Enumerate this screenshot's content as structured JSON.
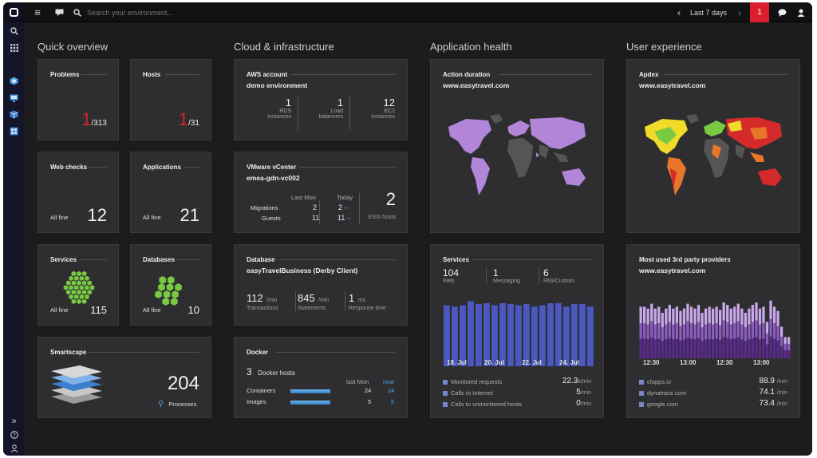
{
  "topbar": {
    "search_placeholder": "Search your environment...",
    "time_range": "Last 7 days",
    "alert_count": "1"
  },
  "sections": {
    "quick": "Quick overview",
    "cloud": "Cloud & infrastructure",
    "apphealth": "Application health",
    "ux": "User experience"
  },
  "problems": {
    "title": "Problems",
    "count": "1",
    "total": "/313"
  },
  "hosts": {
    "title": "Hosts",
    "count": "1",
    "total": "/31"
  },
  "webchecks": {
    "title": "Web checks",
    "status": "All fine",
    "value": "12"
  },
  "applications": {
    "title": "Applications",
    "status": "All fine",
    "value": "21"
  },
  "services": {
    "title": "Services",
    "status": "All fine",
    "value": "115"
  },
  "databases": {
    "title": "Databases",
    "status": "All fine",
    "value": "10"
  },
  "smartscape": {
    "title": "Smartscape",
    "value": "204",
    "label": "Processes"
  },
  "aws": {
    "title": "AWS account",
    "name": "demo environment",
    "items": [
      {
        "value": "1",
        "l1": "RDS",
        "l2": "instances"
      },
      {
        "value": "1",
        "l1": "Load",
        "l2": "balancers"
      },
      {
        "value": "12",
        "l1": "EC2",
        "l2": "instances"
      }
    ]
  },
  "vmware": {
    "title": "VMware vCenter",
    "name": "emea-gdn-vc002",
    "col1": "Last Mon",
    "col2": "Today",
    "row1": "Migrations",
    "row2": "Guests",
    "m1": "2",
    "m2": "2",
    "g1": "11",
    "g2": "11",
    "esxi_value": "2",
    "esxi_label": "ESXi hosts"
  },
  "database": {
    "title": "Database",
    "name": "easyTravelBusiness (Derby Client)",
    "metrics": [
      {
        "value": "112",
        "unit": "/min",
        "label": "Transactions"
      },
      {
        "value": "845",
        "unit": "/min",
        "label": "Statements"
      },
      {
        "value": "1",
        "unit": "ms",
        "label": "Response time"
      }
    ]
  },
  "docker": {
    "title": "Docker",
    "hosts_value": "3",
    "hosts_label": "Docker hosts",
    "col1": "last Mon",
    "col2": "now",
    "rows": [
      {
        "label": "Containers",
        "v1": "24",
        "v2": "24",
        "fill": 0.9
      },
      {
        "label": "Images",
        "v1": "5",
        "v2": "5",
        "fill": 0.9
      }
    ]
  },
  "action": {
    "title": "Action duration",
    "site": "www.easytravel.com"
  },
  "apdex": {
    "title": "Apdex",
    "site": "www.easytravel.com"
  },
  "svc": {
    "title": "Services",
    "web_value": "104",
    "web_label": "Web",
    "msg_value": "1",
    "msg_label": "Messaging",
    "rmi_value": "6",
    "rmi_label": "RMI/Custom",
    "dates": [
      "18. Jul",
      "20. Jul",
      "22. Jul",
      "24. Jul"
    ],
    "bars": [
      0.91,
      0.89,
      0.91,
      0.97,
      0.93,
      0.94,
      0.91,
      0.94,
      0.93,
      0.91,
      0.93,
      0.89,
      0.91,
      0.94,
      0.94,
      0.89,
      0.93,
      0.93,
      0.89
    ],
    "rows": [
      {
        "label": "Monitored requests",
        "value": "22.3",
        "unit": "k/min"
      },
      {
        "label": "Calls to Internet",
        "value": "5",
        "unit": "/min"
      },
      {
        "label": "Calls to unmonitored hosts",
        "value": "0",
        "unit": "/min"
      }
    ]
  },
  "third": {
    "title": "Most used 3rd party providers",
    "site": "www.easytravel.com",
    "times": [
      "12:30",
      "13:00",
      "12:30",
      "13:00",
      "13:30"
    ],
    "bars": [
      0.85,
      0.85,
      0.82,
      0.9,
      0.82,
      0.85,
      0.75,
      0.82,
      0.88,
      0.82,
      0.85,
      0.78,
      0.82,
      0.9,
      0.85,
      0.82,
      0.88,
      0.75,
      0.82,
      0.85,
      0.82,
      0.85,
      0.8,
      0.92,
      0.88,
      0.82,
      0.85,
      0.9,
      0.82,
      0.75,
      0.82,
      0.88,
      0.92,
      0.82,
      0.85,
      0.6,
      0.95,
      0.85,
      0.78,
      0.52,
      0.35,
      0.35
    ],
    "rows": [
      {
        "label": "cfapps.io",
        "value": "88.9",
        "unit": "/min"
      },
      {
        "label": "dynatrace.com",
        "value": "74.1",
        "unit": "/min"
      },
      {
        "label": "google.com",
        "value": "73.4",
        "unit": "/min"
      }
    ]
  },
  "colors": {
    "accent_red": "#dc1f2e",
    "blue": "#4aa3e8",
    "bar_blue": "#4a58c0",
    "green": "#7ac943",
    "map_purple": "#b285d8"
  }
}
